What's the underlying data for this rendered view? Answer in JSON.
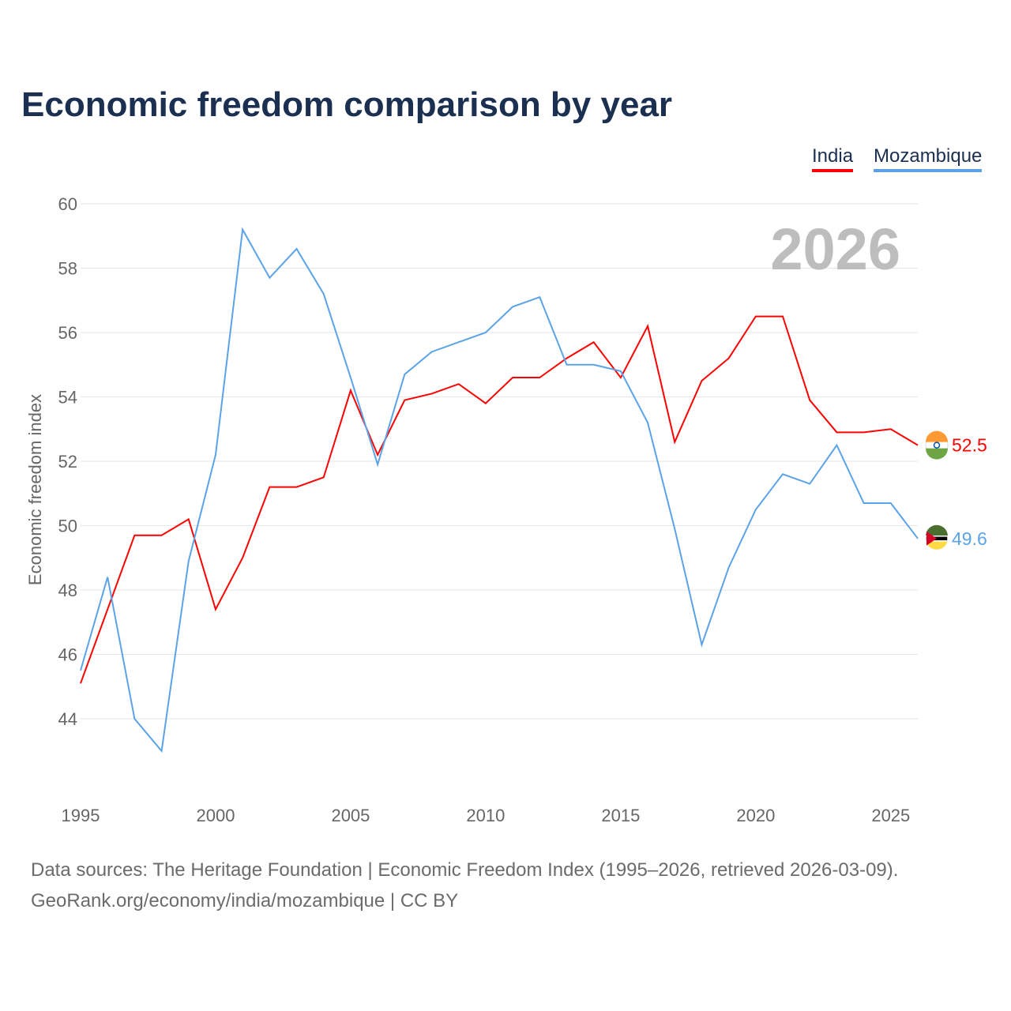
{
  "title": "Economic freedom comparison by year",
  "footer": {
    "line1": "Data sources: The Heritage Foundation | Economic Freedom Index (1995–2026, retrieved 2026-03-09).",
    "line2": "GeoRank.org/economy/india/mozambique | CC BY"
  },
  "chart_data": {
    "type": "line",
    "title": "Economic freedom comparison by year",
    "ylabel": "Economic freedom index",
    "xlabel": "",
    "watermark_year": "2026",
    "ylim": [
      42,
      60
    ],
    "xlim": [
      1995,
      2026
    ],
    "yticks": [
      44,
      46,
      48,
      50,
      52,
      54,
      56,
      58,
      60
    ],
    "xticks": [
      1995,
      2000,
      2005,
      2010,
      2015,
      2020,
      2025
    ],
    "grid": true,
    "legend_position": "top-right",
    "x": [
      1995,
      1996,
      1997,
      1998,
      1999,
      2000,
      2001,
      2002,
      2003,
      2004,
      2005,
      2006,
      2007,
      2008,
      2009,
      2010,
      2011,
      2012,
      2013,
      2014,
      2015,
      2016,
      2017,
      2018,
      2019,
      2020,
      2021,
      2022,
      2023,
      2024,
      2025,
      2026
    ],
    "series": [
      {
        "name": "India",
        "color": "#ff0000",
        "end_label": "52.5",
        "values": [
          45.1,
          47.4,
          49.7,
          49.7,
          50.2,
          47.4,
          49.0,
          51.2,
          51.2,
          51.5,
          54.2,
          52.2,
          53.9,
          54.1,
          54.4,
          53.8,
          54.6,
          54.6,
          55.2,
          55.7,
          54.6,
          56.2,
          52.6,
          54.5,
          55.2,
          56.5,
          56.5,
          53.9,
          52.9,
          52.9,
          53.0,
          52.5
        ]
      },
      {
        "name": "Mozambique",
        "color": "#5ba3e8",
        "end_label": "49.6",
        "values": [
          45.5,
          48.4,
          44.0,
          43.0,
          48.9,
          52.2,
          59.2,
          57.7,
          58.6,
          57.2,
          54.6,
          51.9,
          54.7,
          55.4,
          55.7,
          56.0,
          56.8,
          57.1,
          55.0,
          55.0,
          54.8,
          53.2,
          49.9,
          46.3,
          48.7,
          50.5,
          51.6,
          51.3,
          52.5,
          50.7,
          50.7,
          49.6
        ]
      }
    ]
  }
}
